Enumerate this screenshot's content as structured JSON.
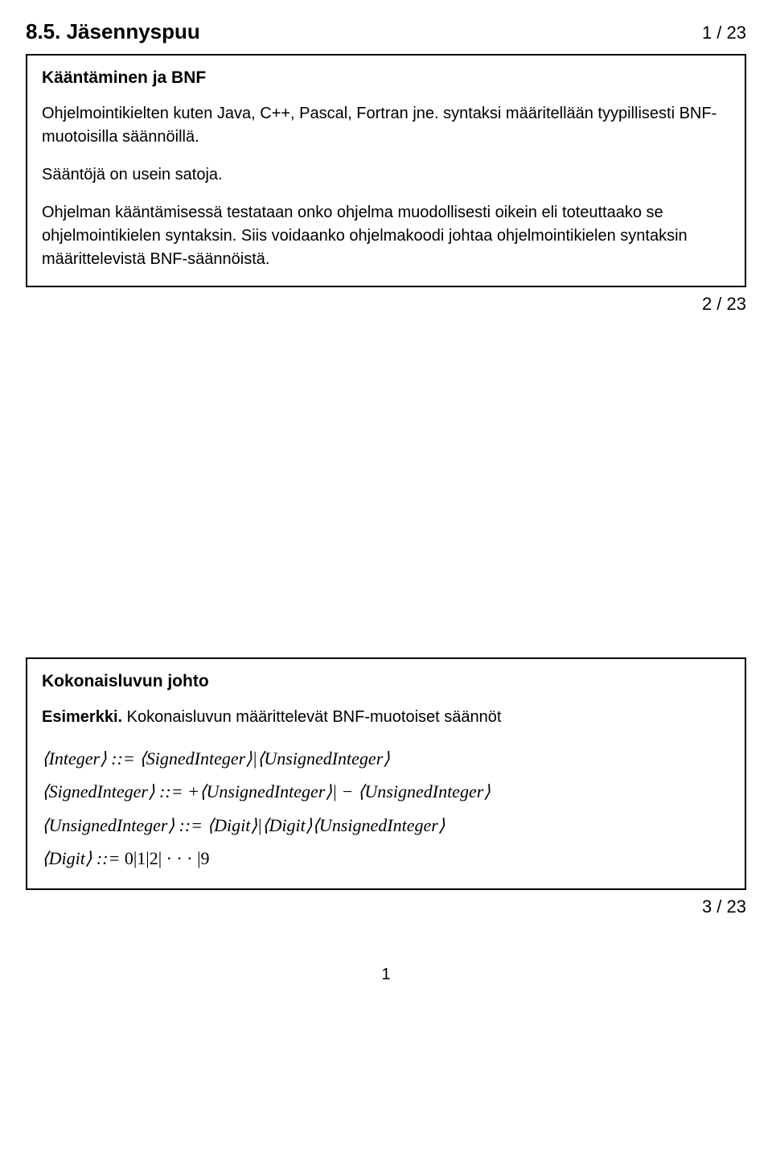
{
  "header": {
    "title": "8.5. Jäsennyspuu",
    "counter": "1 / 23"
  },
  "box1": {
    "title": "Kääntäminen ja BNF",
    "para1": "Ohjelmointikielten kuten Java, C++, Pascal, Fortran jne. syntaksi määritellään tyypillisesti BNF-muotoisilla säännöillä.",
    "para2": "Sääntöjä on usein satoja.",
    "para3": "Ohjelman kääntämisessä testataan onko ohjelma muodollisesti oikein eli toteuttaako se ohjelmointikielen syntaksin. Siis voidaanko ohjelmakoodi johtaa ohjelmointikielen syntaksin määrittelevistä BNF-säännöistä."
  },
  "counter2": "2 / 23",
  "box2": {
    "title": "Kokonaisluvun johto",
    "esimerkki_label": "Esimerkki.",
    "esimerkki_text": " Kokonaisluvun määrittelevät BNF-muotoiset säännöt",
    "bnf1": "⟨Integer⟩ ::= ⟨SignedInteger⟩|⟨UnsignedInteger⟩",
    "bnf2": "⟨SignedInteger⟩ ::= +⟨UnsignedInteger⟩| − ⟨UnsignedInteger⟩",
    "bnf3": "⟨UnsignedInteger⟩ ::= ⟨Digit⟩|⟨Digit⟩⟨UnsignedInteger⟩",
    "bnf4_prefix": "⟨Digit⟩ ::= ",
    "bnf4_suffix": "0|1|2| · · · |9"
  },
  "counter3": "3 / 23",
  "footer": "1"
}
